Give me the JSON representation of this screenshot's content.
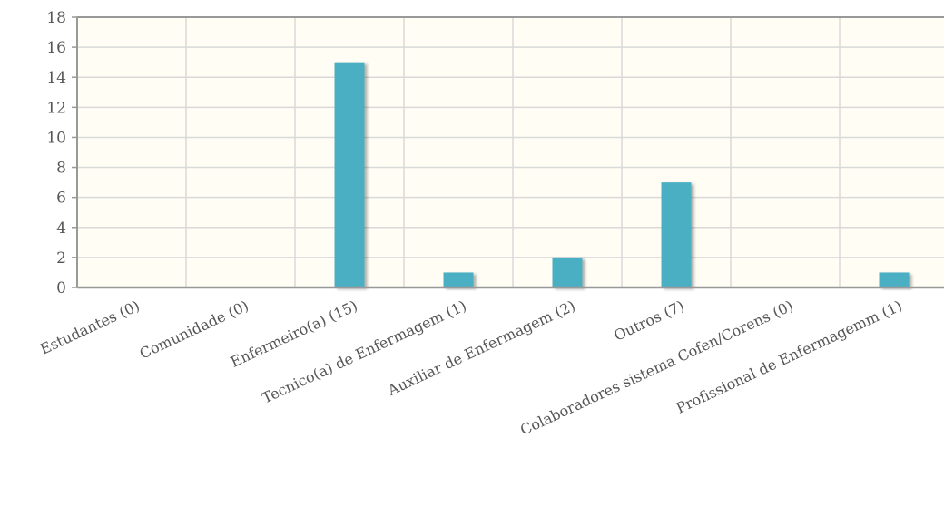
{
  "chart_data": {
    "type": "bar",
    "categories": [
      "Estudantes (0)",
      "Comunidade (0)",
      "Enfermeiro(a) (15)",
      "Tecnico(a) de Enfermagem (1)",
      "Auxiliar de Enfermagem (2)",
      "Outros (7)",
      "Colaboradores sistema Cofen/Corens (0)",
      "Profissional de Enfermagemm (1)"
    ],
    "values": [
      0,
      0,
      15,
      1,
      2,
      7,
      0,
      1
    ],
    "ylim": [
      0,
      18
    ],
    "yticks": [
      "0",
      "2",
      "4",
      "6",
      "8",
      "10",
      "12",
      "14",
      "16",
      "18"
    ],
    "grid": true,
    "legend": "none",
    "colors": {
      "bar": "#4bafc4",
      "plot_background": "#fffdf4",
      "grid": "#d9d9d9",
      "axis": "#999999",
      "text": "#555555"
    }
  }
}
